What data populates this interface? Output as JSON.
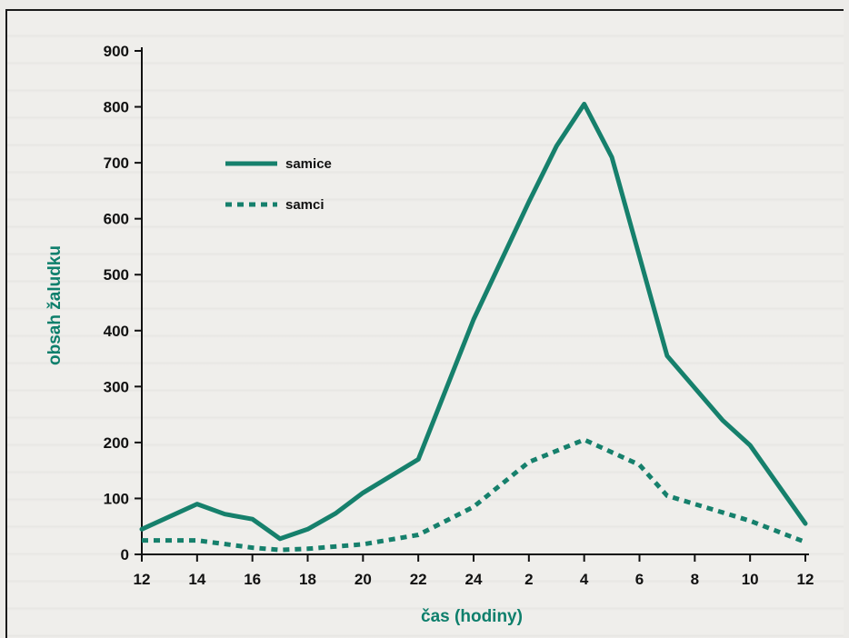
{
  "chart_data": {
    "type": "line",
    "xlabel": "čas (hodiny)",
    "ylabel": "obsah žaludku",
    "ylim": [
      0,
      900
    ],
    "y_ticks": [
      "0",
      "100",
      "200",
      "300",
      "400",
      "500",
      "600",
      "700",
      "800",
      "900"
    ],
    "x_ticks": [
      "12",
      "14",
      "16",
      "18",
      "20",
      "22",
      "24",
      "2",
      "4",
      "6",
      "8",
      "10",
      "12"
    ],
    "grid": false,
    "legend_position": "top-left",
    "line_color": "#16806c",
    "series": [
      {
        "name": "samice",
        "style": "solid",
        "x": [
          12,
          14,
          15,
          16,
          17,
          18,
          19,
          20,
          22,
          24,
          26,
          27,
          28,
          29,
          31,
          33,
          34,
          36
        ],
        "y": [
          45,
          90,
          72,
          63,
          28,
          45,
          73,
          110,
          170,
          420,
          630,
          730,
          805,
          710,
          355,
          240,
          195,
          55
        ]
      },
      {
        "name": "samci",
        "style": "dotted",
        "x": [
          12,
          14,
          16,
          17,
          18,
          20,
          22,
          24,
          26,
          28,
          30,
          31,
          33,
          34,
          36
        ],
        "y": [
          25,
          25,
          12,
          8,
          10,
          18,
          35,
          85,
          165,
          205,
          160,
          105,
          75,
          60,
          22
        ]
      }
    ]
  }
}
